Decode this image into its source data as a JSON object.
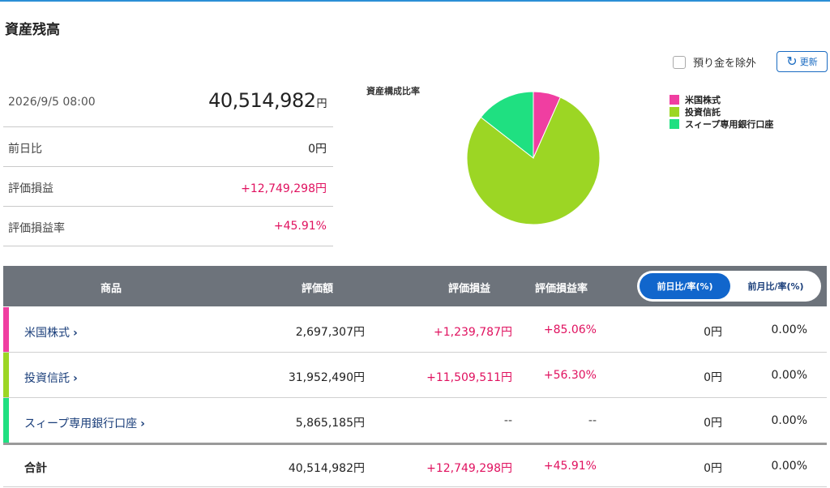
{
  "page": {
    "title": "資産残高"
  },
  "summary": {
    "datetime": "2026/9/5 08:00",
    "total_value": "40,514,982",
    "total_unit": "円",
    "day_change_label": "前日比",
    "day_change_value": "0円",
    "gain_label": "評価損益",
    "gain_value": "+12,749,298円",
    "gain_rate_label": "評価損益率",
    "gain_rate_value": "+45.91%"
  },
  "controls": {
    "exclude_deposit_label": "預り金を除外",
    "exclude_deposit_checked": false,
    "refresh_label": "更新"
  },
  "chart_data": {
    "type": "pie",
    "title": "資産構成比率",
    "legend_position": "right",
    "slices": [
      {
        "label": "米国株式",
        "value": 2697307,
        "color": "#f03ea1"
      },
      {
        "label": "投資信託",
        "value": 31952490,
        "color": "#9cd624"
      },
      {
        "label": "スィープ専用銀行口座",
        "value": 5865185,
        "color": "#1fe081"
      }
    ]
  },
  "table": {
    "headers": {
      "product": "商品",
      "value": "評価額",
      "gain": "評価損益",
      "rate": "評価損益率"
    },
    "toggle": {
      "active": "前日比/率(%)",
      "inactive": "前月比/率(%)"
    },
    "rows": [
      {
        "name": "米国株式",
        "color": "#f03ea1",
        "value": "2,697,307円",
        "gain": "+1,239,787円",
        "rate": "+85.06%",
        "change": "0円",
        "change_rate": "0.00%"
      },
      {
        "name": "投資信託",
        "color": "#9cd624",
        "value": "31,952,490円",
        "gain": "+11,509,511円",
        "rate": "+56.30%",
        "change": "0円",
        "change_rate": "0.00%"
      },
      {
        "name": "スィープ専用銀行口座",
        "color": "#1fe081",
        "value": "5,865,185円",
        "gain": "--",
        "rate": "--",
        "change": "0円",
        "change_rate": "0.00%"
      }
    ],
    "total": {
      "label": "合計",
      "value": "40,514,982円",
      "gain": "+12,749,298円",
      "rate": "+45.91%",
      "change": "0円",
      "change_rate": "0.00%"
    }
  }
}
